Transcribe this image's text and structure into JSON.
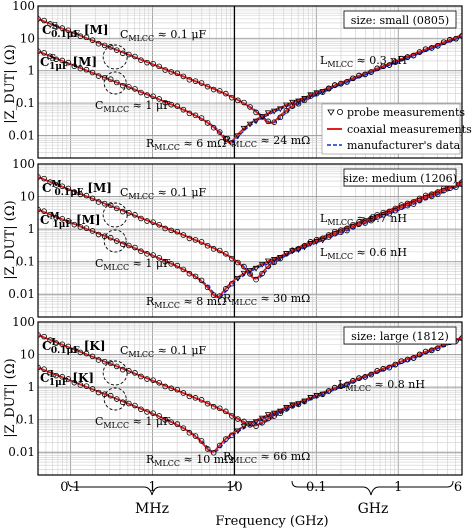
{
  "figure": {
    "ylabel": "|Z_DUT| (Ω)",
    "xlabel": "Frequency (GHz)",
    "region_labels": [
      "MHz",
      "GHz"
    ],
    "legend": {
      "probe": "probe measurements",
      "coax": "coaxial measurements",
      "manuf": "manufacturer's data"
    }
  },
  "colors": {
    "coax": "#e02020",
    "manuf": "#1a2fd0",
    "probe": "#000000"
  },
  "chart_data": [
    {
      "type": "line",
      "size_label": "size: small (0805)",
      "cap_labels": [
        {
          "sym": "C",
          "sup": "S",
          "sub": "0.1μF",
          "tag": "[M]",
          "curve": 0
        },
        {
          "sym": "C",
          "sup": "S",
          "sub": "1μF",
          "tag": "[M]",
          "curve": 1
        }
      ],
      "annotations": [
        {
          "main": "C",
          "sub": "MLCC",
          "rest": " ≈ 0.1 μF"
        },
        {
          "main": "C",
          "sub": "MLCC",
          "rest": " ≈ 1 μF"
        },
        {
          "main": "R",
          "sub": "MLCC",
          "rest": " ≈ 6 mΩ"
        },
        {
          "main": "R",
          "sub": "MLCC",
          "rest": " ≈ 24 mΩ"
        },
        {
          "main": "L",
          "sub": "MLCC",
          "rest": " ≈ 0.3 nH"
        }
      ],
      "x_unit": "MHz",
      "x_ticks": [
        "0.1",
        "1",
        "10",
        "0.1",
        "1",
        "6"
      ],
      "y_ticks": [
        "100",
        "10",
        "1",
        "0.1",
        "0.01"
      ],
      "ylim": [
        0.002,
        100
      ],
      "xlim_MHz": [
        0.04,
        6000
      ],
      "series": [
        {
          "curve": "C 0.1μF",
          "C_uF": 0.1,
          "R_mOhm": 24,
          "L_nH": 0.3
        },
        {
          "curve": "C 1μF",
          "C_uF": 1,
          "R_mOhm": 6,
          "L_nH": 0.3
        }
      ]
    },
    {
      "type": "line",
      "size_label": "size: medium (1206)",
      "cap_labels": [
        {
          "sym": "C",
          "sup": "M",
          "sub": "0.1μF",
          "tag": "[M]",
          "curve": 0
        },
        {
          "sym": "C",
          "sup": "M",
          "sub": "1μF",
          "tag": "[M]",
          "curve": 1
        }
      ],
      "annotations": [
        {
          "main": "C",
          "sub": "MLCC",
          "rest": " ≈ 0.1 μF"
        },
        {
          "main": "C",
          "sub": "MLCC",
          "rest": " ≈ 1 μF"
        },
        {
          "main": "R",
          "sub": "MLCC",
          "rest": " ≈ 8 mΩ"
        },
        {
          "main": "R",
          "sub": "MLCC",
          "rest": " ≈ 30 mΩ"
        },
        {
          "main": "L",
          "sub": "MLCC",
          "rest": " ≈ 0.7 nH"
        },
        {
          "main": "L",
          "sub": "MLCC",
          "rest": " ≈ 0.6 nH"
        }
      ],
      "x_unit": "MHz",
      "x_ticks": [
        "0.1",
        "1",
        "10",
        "0.1",
        "1",
        "6"
      ],
      "y_ticks": [
        "100",
        "10",
        "1",
        "0.1",
        "0.01"
      ],
      "ylim": [
        0.002,
        100
      ],
      "xlim_MHz": [
        0.04,
        6000
      ],
      "series": [
        {
          "curve": "C 0.1μF",
          "C_uF": 0.1,
          "R_mOhm": 30,
          "L_nH": 0.7
        },
        {
          "curve": "C 1μF",
          "C_uF": 1,
          "R_mOhm": 8,
          "L_nH": 0.6
        }
      ]
    },
    {
      "type": "line",
      "size_label": "size: large (1812)",
      "cap_labels": [
        {
          "sym": "C",
          "sup": "L",
          "sub": "0.1μF",
          "tag": "[K]",
          "curve": 0
        },
        {
          "sym": "C",
          "sup": "L",
          "sub": "1μF",
          "tag": "[K]",
          "curve": 1
        }
      ],
      "annotations": [
        {
          "main": "C",
          "sub": "MLCC",
          "rest": " ≈ 0.1 μF"
        },
        {
          "main": "C",
          "sub": "MLCC",
          "rest": " ≈ 1 μF"
        },
        {
          "main": "R",
          "sub": "MLCC",
          "rest": " ≈ 10 mΩ"
        },
        {
          "main": "R",
          "sub": "MLCC",
          "rest": " ≈ 66 mΩ"
        },
        {
          "main": "L",
          "sub": "MLCC",
          "rest": " ≈ 0.8 nH"
        }
      ],
      "x_unit": "MHz",
      "x_ticks": [
        "0.1",
        "1",
        "10",
        "0.1",
        "1",
        "6"
      ],
      "y_ticks": [
        "100",
        "10",
        "1",
        "0.1",
        "0.01"
      ],
      "ylim": [
        0.002,
        100
      ],
      "xlim_MHz": [
        0.04,
        6000
      ],
      "series": [
        {
          "curve": "C 0.1μF",
          "C_uF": 0.1,
          "R_mOhm": 66,
          "L_nH": 0.8
        },
        {
          "curve": "C 1μF",
          "C_uF": 1,
          "R_mOhm": 10,
          "L_nH": 0.8
        }
      ]
    }
  ]
}
